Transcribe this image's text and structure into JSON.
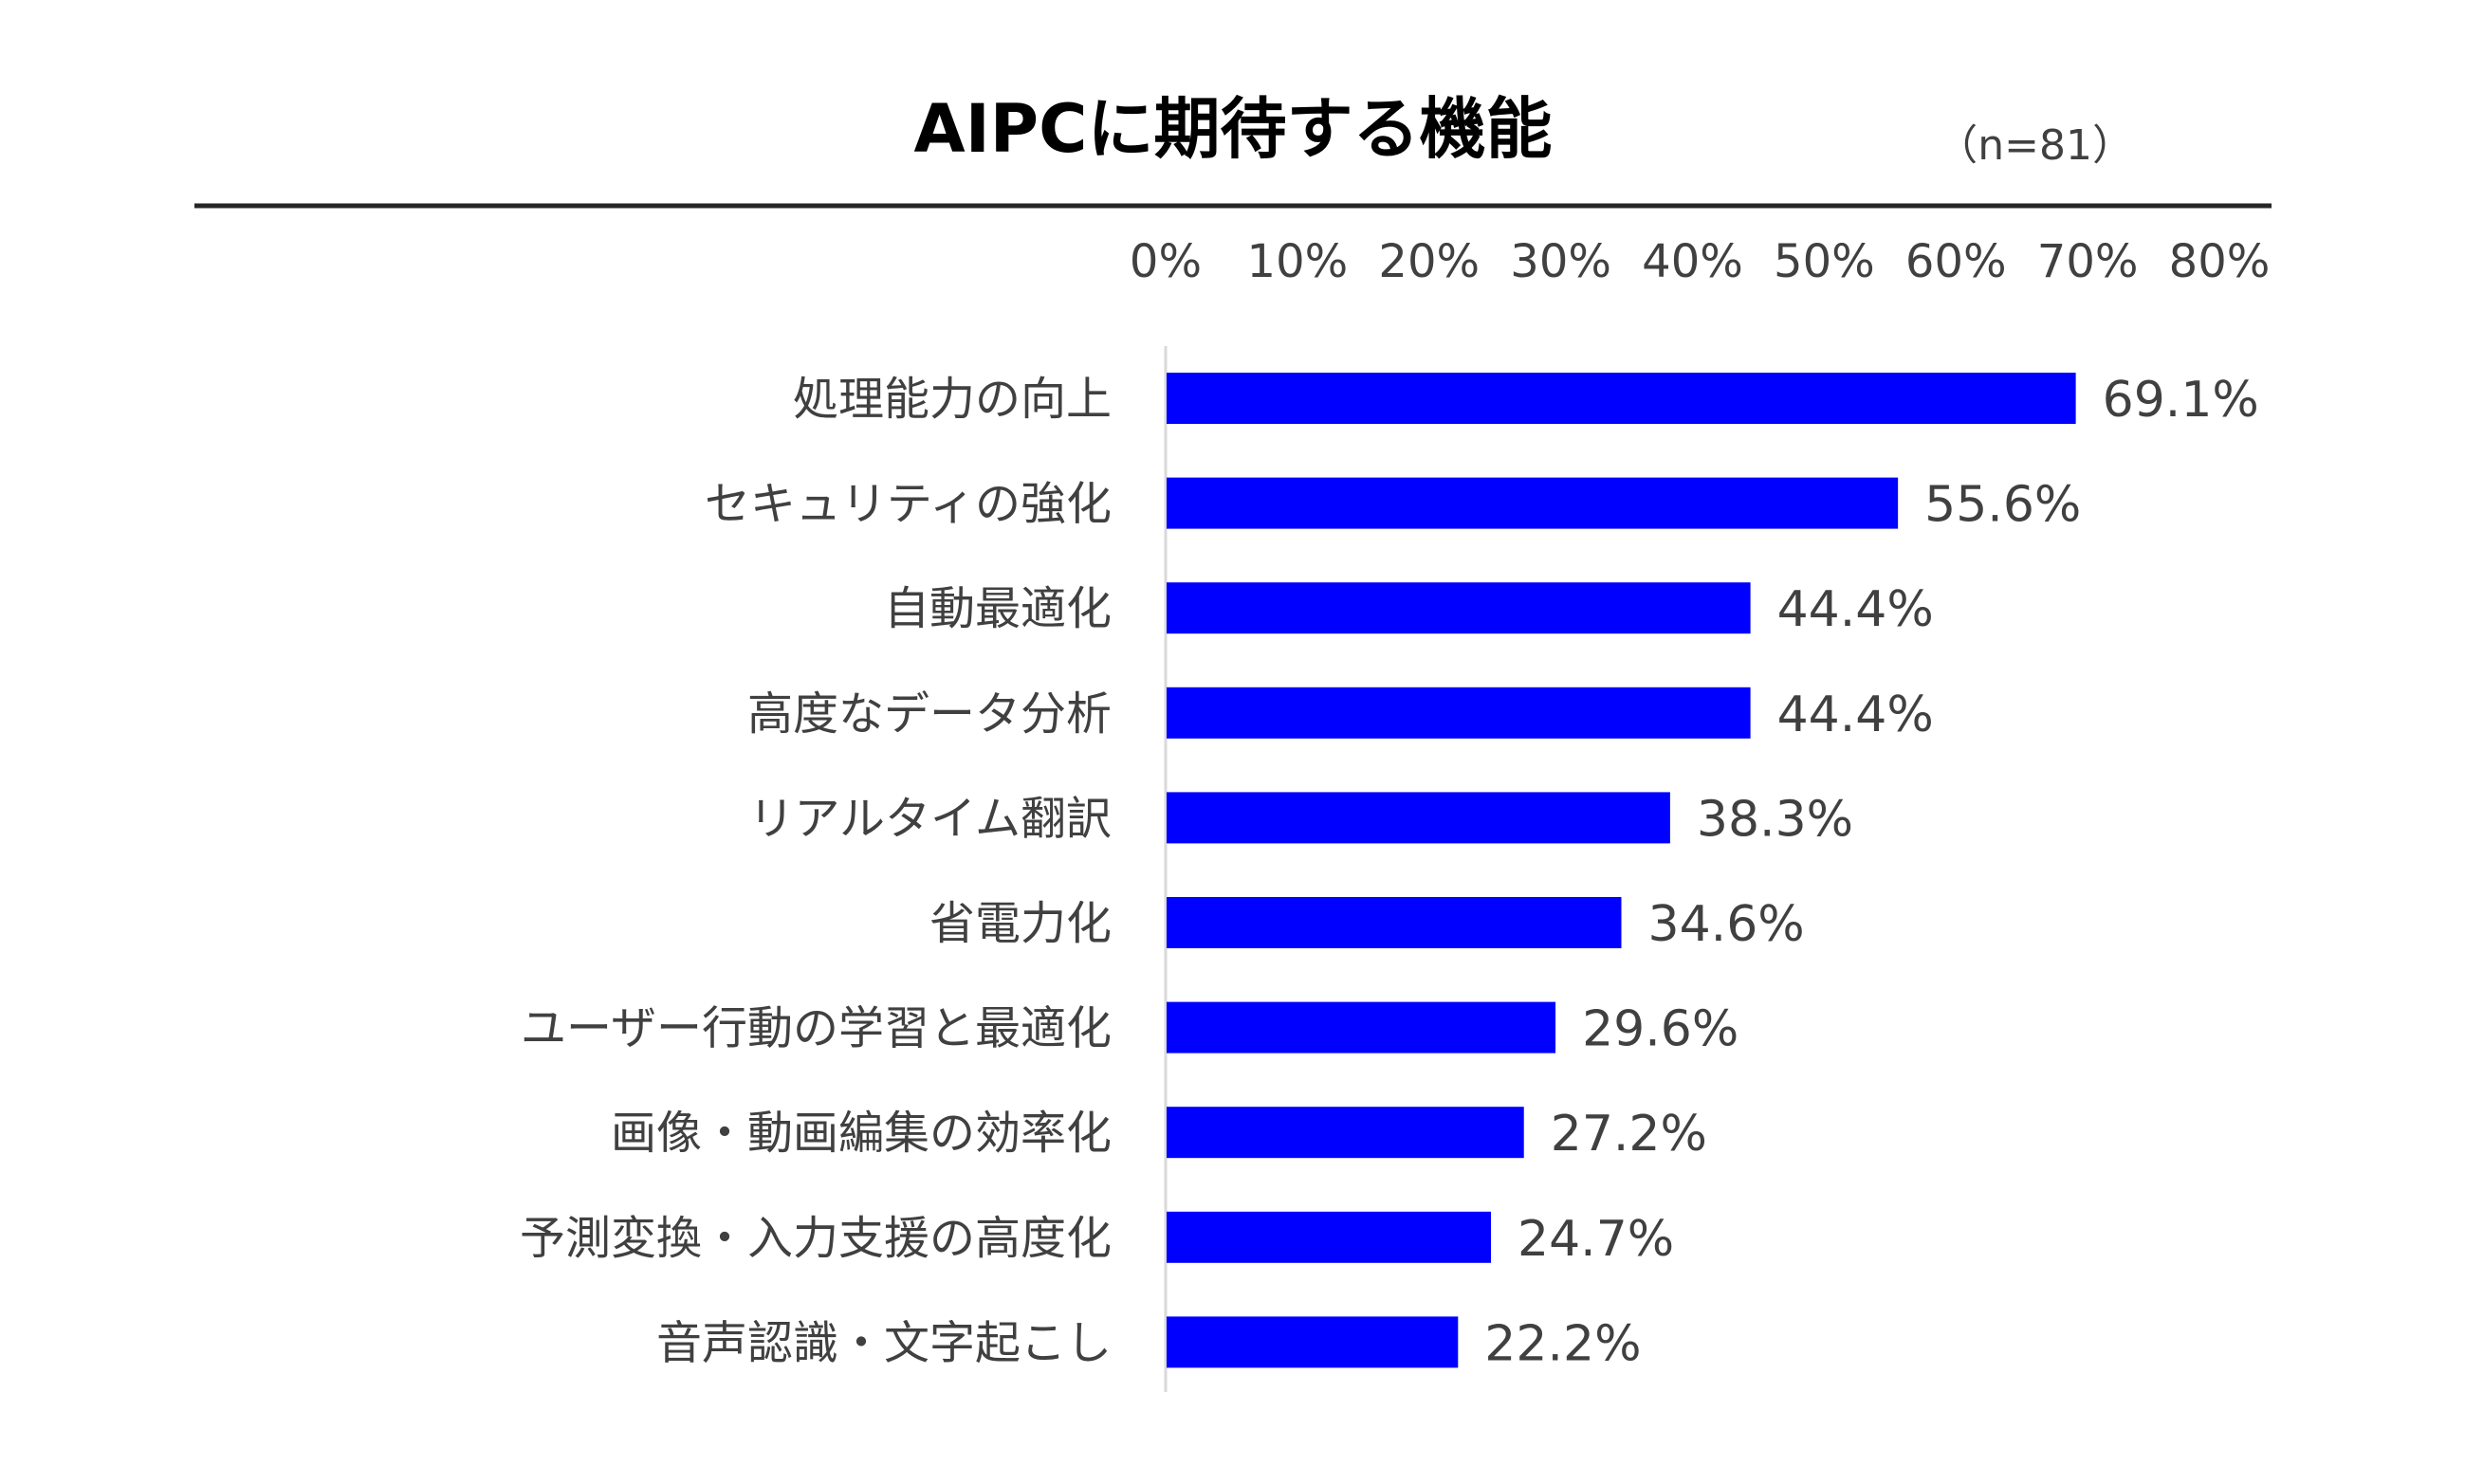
{
  "chart_data": {
    "type": "bar",
    "orientation": "horizontal",
    "title": "AIPCに期待する機能",
    "note": "（n=81）",
    "xlim": [
      0,
      80
    ],
    "xticks": [
      "0%",
      "10%",
      "20%",
      "30%",
      "40%",
      "50%",
      "60%",
      "70%",
      "80%"
    ],
    "tick_position": "top",
    "grid": false,
    "legend": "none",
    "bar_color": "#0000FF",
    "categories": [
      "処理能力の向上",
      "セキュリティの強化",
      "自動最適化",
      "高度なデータ分析",
      "リアルタイム翻訳",
      "省電力化",
      "ユーザー行動の学習と最適化",
      "画像・動画編集の効率化",
      "予測変換・入力支援の高度化",
      "音声認識・文字起こし"
    ],
    "values": [
      69.1,
      55.6,
      44.4,
      44.4,
      38.3,
      34.6,
      29.6,
      27.2,
      24.7,
      22.2
    ],
    "value_labels": [
      "69.1%",
      "55.6%",
      "44.4%",
      "44.4%",
      "38.3%",
      "34.6%",
      "29.6%",
      "27.2%",
      "24.7%",
      "22.2%"
    ]
  }
}
